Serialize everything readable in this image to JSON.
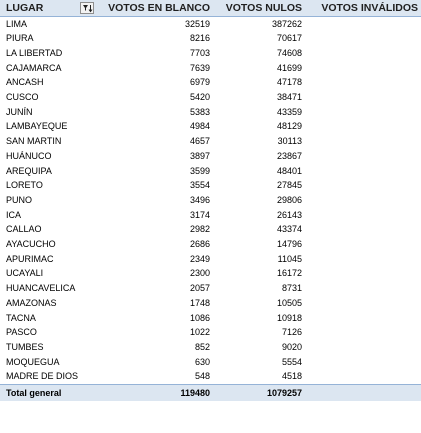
{
  "headers": {
    "lugar": "LUGAR",
    "votos_blanco": "VOTOS EN BLANCO",
    "votos_nulos": "VOTOS NULOS",
    "votos_invalidos": "VOTOS INVÁLIDOS"
  },
  "filter_icon": "filter-sort-icon",
  "rows": [
    {
      "lugar": "LIMA",
      "blanco": "32519",
      "nulos": "387262",
      "invalidos": ""
    },
    {
      "lugar": "PIURA",
      "blanco": "8216",
      "nulos": "70617",
      "invalidos": ""
    },
    {
      "lugar": "LA LIBERTAD",
      "blanco": "7703",
      "nulos": "74608",
      "invalidos": ""
    },
    {
      "lugar": "CAJAMARCA",
      "blanco": "7639",
      "nulos": "41699",
      "invalidos": ""
    },
    {
      "lugar": "ANCASH",
      "blanco": "6979",
      "nulos": "47178",
      "invalidos": ""
    },
    {
      "lugar": "CUSCO",
      "blanco": "5420",
      "nulos": "38471",
      "invalidos": ""
    },
    {
      "lugar": "JUNÍN",
      "blanco": "5383",
      "nulos": "43359",
      "invalidos": ""
    },
    {
      "lugar": "LAMBAYEQUE",
      "blanco": "4984",
      "nulos": "48129",
      "invalidos": ""
    },
    {
      "lugar": "SAN MARTIN",
      "blanco": "4657",
      "nulos": "30113",
      "invalidos": ""
    },
    {
      "lugar": "HUÁNUCO",
      "blanco": "3897",
      "nulos": "23867",
      "invalidos": ""
    },
    {
      "lugar": "AREQUIPA",
      "blanco": "3599",
      "nulos": "48401",
      "invalidos": ""
    },
    {
      "lugar": "LORETO",
      "blanco": "3554",
      "nulos": "27845",
      "invalidos": ""
    },
    {
      "lugar": "PUNO",
      "blanco": "3496",
      "nulos": "29806",
      "invalidos": ""
    },
    {
      "lugar": "ICA",
      "blanco": "3174",
      "nulos": "26143",
      "invalidos": ""
    },
    {
      "lugar": "CALLAO",
      "blanco": "2982",
      "nulos": "43374",
      "invalidos": ""
    },
    {
      "lugar": "AYACUCHO",
      "blanco": "2686",
      "nulos": "14796",
      "invalidos": ""
    },
    {
      "lugar": "APURIMAC",
      "blanco": "2349",
      "nulos": "11045",
      "invalidos": ""
    },
    {
      "lugar": "UCAYALI",
      "blanco": "2300",
      "nulos": "16172",
      "invalidos": ""
    },
    {
      "lugar": "HUANCAVELICA",
      "blanco": "2057",
      "nulos": "8731",
      "invalidos": ""
    },
    {
      "lugar": "AMAZONAS",
      "blanco": "1748",
      "nulos": "10505",
      "invalidos": ""
    },
    {
      "lugar": "TACNA",
      "blanco": "1086",
      "nulos": "10918",
      "invalidos": ""
    },
    {
      "lugar": "PASCO",
      "blanco": "1022",
      "nulos": "7126",
      "invalidos": ""
    },
    {
      "lugar": "TUMBES",
      "blanco": "852",
      "nulos": "9020",
      "invalidos": ""
    },
    {
      "lugar": "MOQUEGUA",
      "blanco": "630",
      "nulos": "5554",
      "invalidos": ""
    },
    {
      "lugar": "MADRE DE DIOS",
      "blanco": "548",
      "nulos": "4518",
      "invalidos": ""
    }
  ],
  "total": {
    "label": "Total general",
    "blanco": "119480",
    "nulos": "1079257",
    "invalidos": ""
  }
}
